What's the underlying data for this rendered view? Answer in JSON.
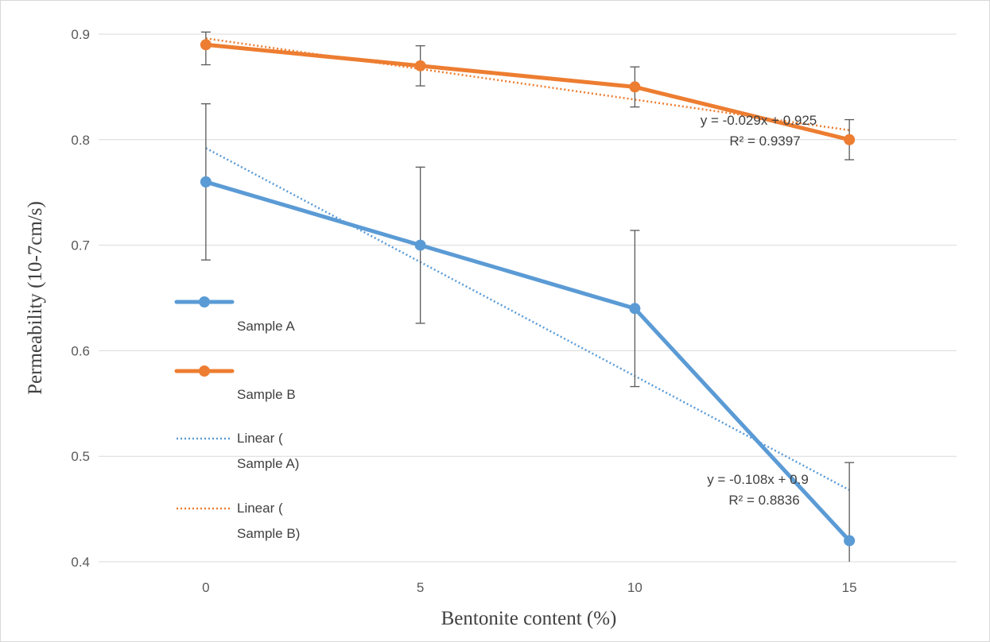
{
  "chart_data": {
    "type": "line",
    "xlabel": "Bentonite content (%)",
    "ylabel": "Permeability (10-7cm/s)",
    "x": [
      0,
      5,
      10,
      15
    ],
    "x_tick_labels": [
      "0",
      "5",
      "10",
      "15"
    ],
    "xlim": [
      -2.5,
      17.5
    ],
    "ylim": [
      0.4,
      0.9
    ],
    "y_ticks": [
      0.4,
      0.5,
      0.6,
      0.7,
      0.8,
      0.9
    ],
    "y_tick_labels": [
      "0.4",
      "0.5",
      "0.6",
      "0.7",
      "0.8",
      "0.9"
    ],
    "grid": "horizontal",
    "legend_position": "left-inside",
    "series": [
      {
        "name": "Sample A",
        "color": "#5b9bd5",
        "values": [
          0.76,
          0.7,
          0.64,
          0.42
        ],
        "error": [
          0.074,
          0.074,
          0.074,
          0.074
        ]
      },
      {
        "name": "Sample B",
        "color": "#ed7d31",
        "values": [
          0.89,
          0.87,
          0.85,
          0.8
        ],
        "error": [
          0.019,
          0.019,
          0.019,
          0.019
        ]
      }
    ],
    "trendlines": [
      {
        "name": "Linear ( Sample A)",
        "legend_lines": [
          "Linear (",
          "Sample A)"
        ],
        "color": "#5b9bd5",
        "slope": -0.108,
        "intercept": 0.9,
        "x_coeff_step": 5,
        "equation": "y = -0.108x + 0.9",
        "r2": "R² = 0.8836"
      },
      {
        "name": "Linear ( Sample B)",
        "legend_lines": [
          "Linear (",
          "Sample B)"
        ],
        "color": "#ed7d31",
        "slope": -0.029,
        "intercept": 0.925,
        "x_coeff_step": 5,
        "equation": "y = -0.029x + 0.925",
        "r2": "R² = 0.9397"
      }
    ]
  }
}
